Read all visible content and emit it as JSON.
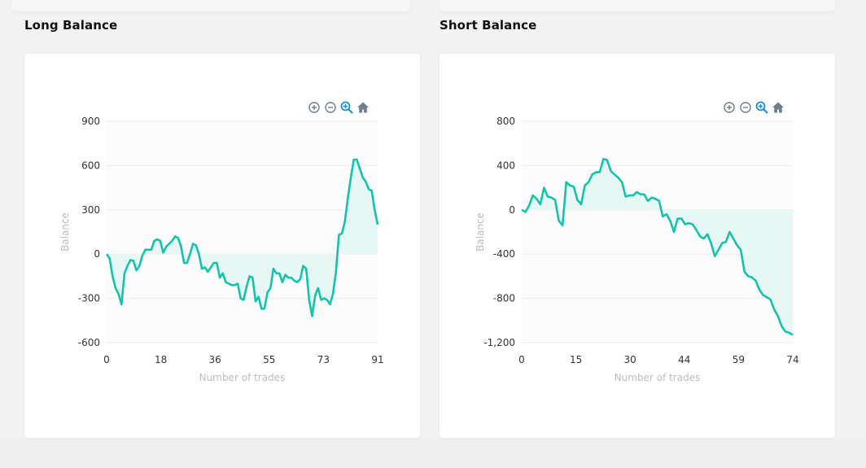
{
  "sections": {
    "long": {
      "title": "Long Balance"
    },
    "short": {
      "title": "Short Balance"
    }
  },
  "toolbar": {
    "icons": [
      "zoom-in-icon",
      "zoom-out-icon",
      "zoom-selection-icon",
      "home-icon"
    ]
  },
  "colors": {
    "line": "#13c4aa",
    "area": "#e7f7f3",
    "tool_grey": "#6e7f8f",
    "tool_active": "#1b8fd6"
  },
  "chart_data": [
    {
      "type": "area",
      "xlabel": "Number of trades",
      "ylabel": "Balance",
      "xlim": [
        0,
        91
      ],
      "ylim": [
        -600,
        900
      ],
      "x_ticks": [
        "0",
        "18",
        "36",
        "55",
        "73",
        "91"
      ],
      "y_ticks": [
        "900",
        "600",
        "300",
        "0",
        "-300",
        "-600"
      ],
      "series": [
        {
          "values": [
            0,
            -30,
            -150,
            -230,
            -270,
            -340,
            -130,
            -80,
            -40,
            -45,
            -110,
            -80,
            -10,
            30,
            30,
            30,
            90,
            100,
            90,
            10,
            50,
            70,
            90,
            120,
            110,
            50,
            -60,
            -60,
            0,
            70,
            60,
            0,
            -100,
            -90,
            -120,
            -90,
            -60,
            -60,
            -160,
            -130,
            -190,
            -200,
            -210,
            -210,
            -200,
            -300,
            -310,
            -220,
            -150,
            -160,
            -320,
            -290,
            -370,
            -370,
            -260,
            -230,
            -100,
            -130,
            -130,
            -190,
            -140,
            -160,
            -160,
            -180,
            -190,
            -170,
            -80,
            -100,
            -310,
            -420,
            -280,
            -230,
            -310,
            -300,
            -310,
            -340,
            -270,
            -120,
            130,
            140,
            220,
            380,
            520,
            640,
            640,
            580,
            520,
            490,
            440,
            430,
            300,
            200
          ]
        }
      ]
    },
    {
      "type": "area",
      "xlabel": "Number of trades",
      "ylabel": "Balance",
      "xlim": [
        0,
        74
      ],
      "ylim": [
        -1200,
        800
      ],
      "x_ticks": [
        "0",
        "15",
        "30",
        "44",
        "59",
        "74"
      ],
      "y_ticks": [
        "800",
        "400",
        "0",
        "-400",
        "-800",
        "-1,200"
      ],
      "series": [
        {
          "values": [
            0,
            -20,
            40,
            130,
            100,
            50,
            200,
            120,
            110,
            90,
            -100,
            -140,
            250,
            220,
            210,
            90,
            50,
            220,
            250,
            320,
            340,
            340,
            460,
            450,
            350,
            320,
            290,
            250,
            120,
            130,
            130,
            160,
            140,
            140,
            80,
            110,
            100,
            80,
            -60,
            -40,
            -100,
            -200,
            -80,
            -80,
            -130,
            -120,
            -130,
            -180,
            -240,
            -260,
            -220,
            -300,
            -420,
            -360,
            -300,
            -290,
            -200,
            -260,
            -320,
            -360,
            -560,
            -600,
            -610,
            -640,
            -720,
            -770,
            -790,
            -810,
            -900,
            -960,
            -1050,
            -1100,
            -1110,
            -1130
          ]
        }
      ]
    }
  ]
}
